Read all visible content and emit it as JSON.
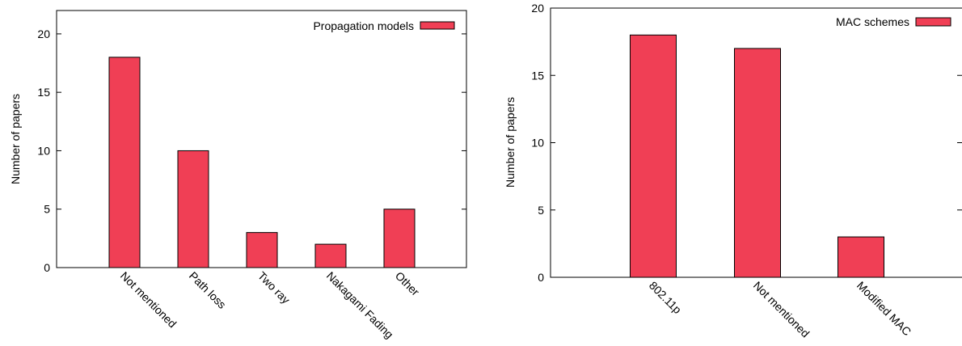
{
  "chart_data": [
    {
      "type": "bar",
      "title": "",
      "xlabel": "",
      "ylabel": "Number of papers",
      "ylim": [
        0,
        22
      ],
      "yticks": [
        0,
        5,
        10,
        15,
        20
      ],
      "categories": [
        "Not mentioned",
        "Path loss",
        "Two ray",
        "Nakagami Fading",
        "Other"
      ],
      "series": [
        {
          "name": "Propagation models",
          "values": [
            18,
            10,
            3,
            2,
            5
          ],
          "color": "#f03f55"
        }
      ],
      "legend": "top-right",
      "grid": false
    },
    {
      "type": "bar",
      "title": "",
      "xlabel": "",
      "ylabel": "Number of papers",
      "ylim": [
        0,
        20
      ],
      "yticks": [
        0,
        5,
        10,
        15,
        20
      ],
      "categories": [
        "802.11p",
        "Not mentioned",
        "Modified MAC"
      ],
      "series": [
        {
          "name": "MAC schemes",
          "values": [
            18,
            17,
            3
          ],
          "color": "#f03f55"
        }
      ],
      "legend": "top-right",
      "grid": false
    }
  ]
}
